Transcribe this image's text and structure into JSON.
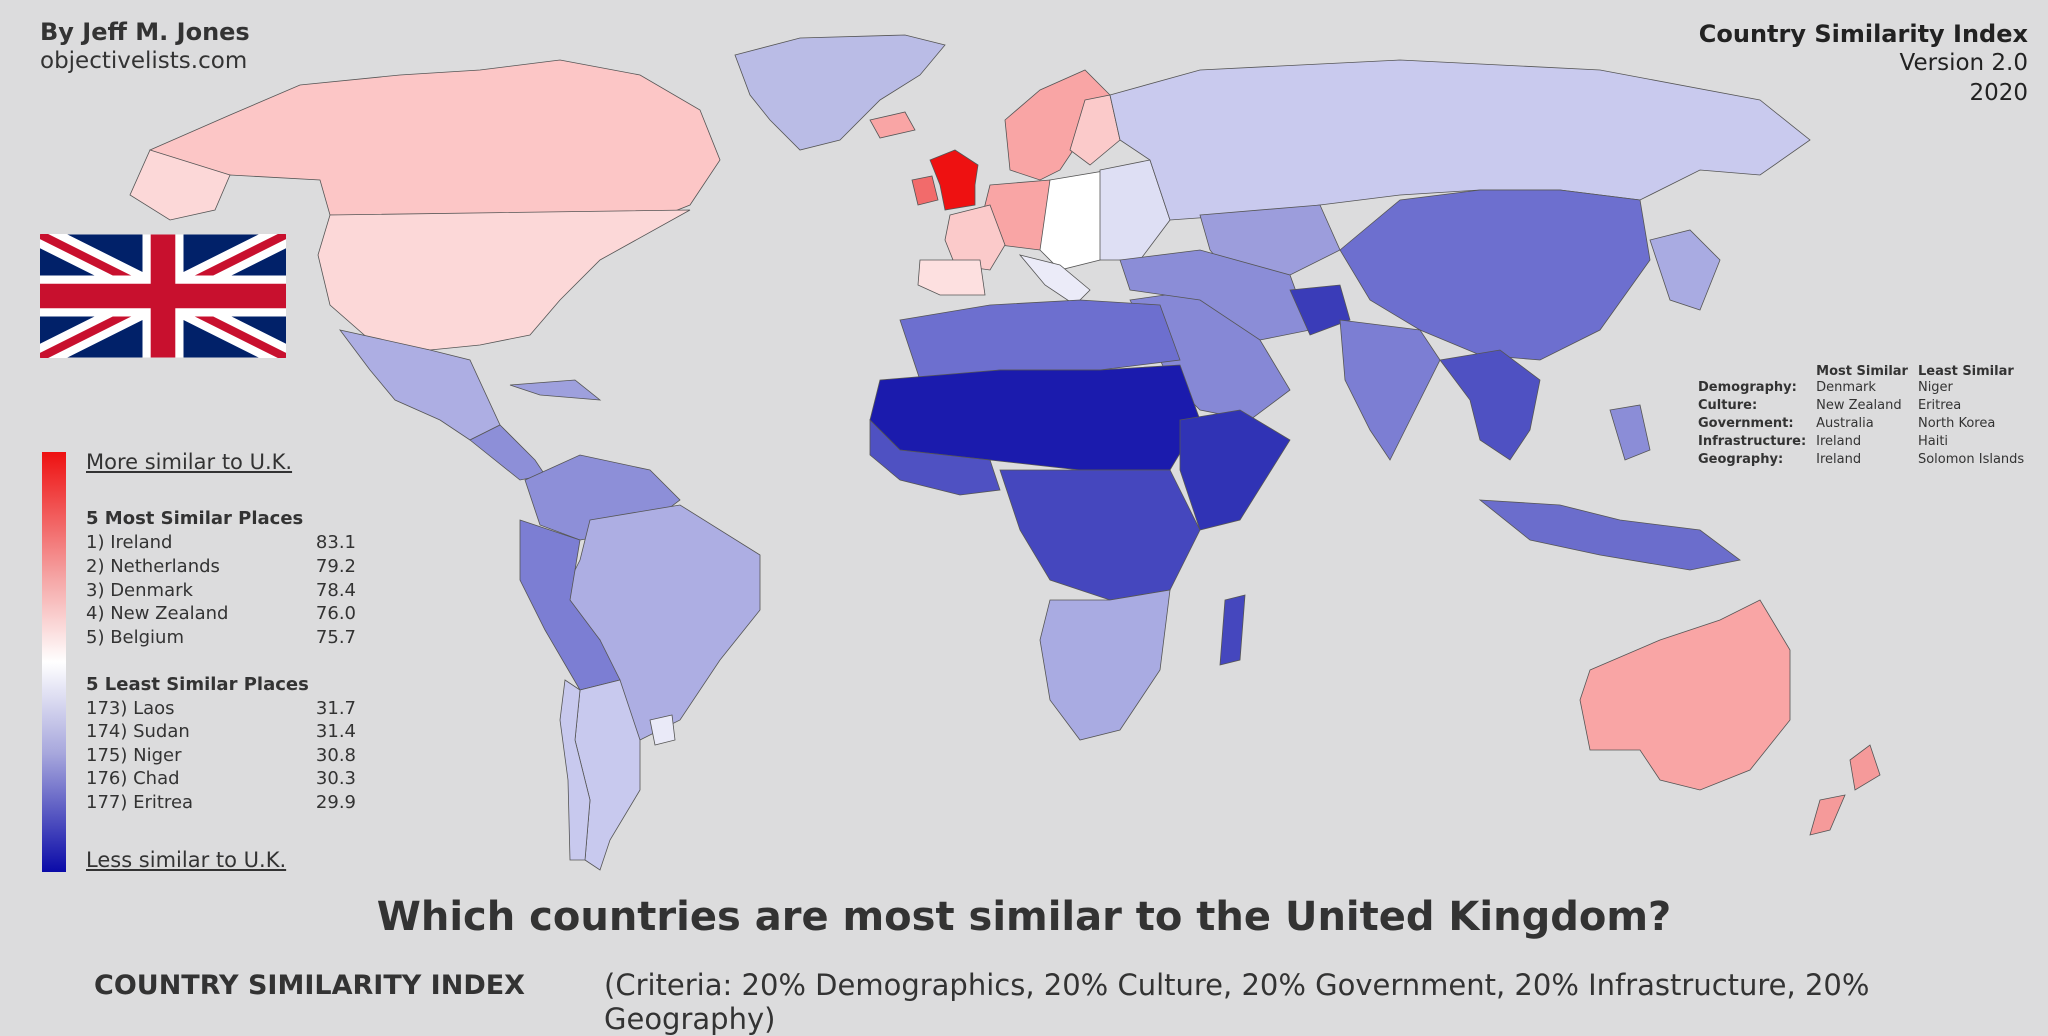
{
  "header": {
    "author": "By Jeff M. Jones",
    "site": "objectivelists.com",
    "index_title": "Country Similarity Index",
    "version": "Version 2.0",
    "year": "2020"
  },
  "colors": {
    "most_similar": "#ee1111",
    "neutral": "#ffffff",
    "least_similar": "#0a0aa8",
    "ocean": "#dcdcdd"
  },
  "legend": {
    "top_label": "More similar to U.K.",
    "bottom_label": "Less similar to U.K.",
    "most_heading": "5 Most Similar Places",
    "most": [
      {
        "rank": "1) Ireland",
        "score": "83.1"
      },
      {
        "rank": "2) Netherlands",
        "score": "79.2"
      },
      {
        "rank": "3) Denmark",
        "score": "78.4"
      },
      {
        "rank": "4) New Zealand",
        "score": "76.0"
      },
      {
        "rank": "5) Belgium",
        "score": "75.7"
      }
    ],
    "least_heading": "5 Least Similar Places",
    "least": [
      {
        "rank": "173) Laos",
        "score": "31.7"
      },
      {
        "rank": "174) Sudan",
        "score": "31.4"
      },
      {
        "rank": "175) Niger",
        "score": "30.8"
      },
      {
        "rank": "176) Chad",
        "score": "30.3"
      },
      {
        "rank": "177) Eritrea",
        "score": "29.9"
      }
    ]
  },
  "categories": {
    "col_most": "Most Similar",
    "col_least": "Least Similar",
    "rows": [
      {
        "name": "Demography:",
        "most": "Denmark",
        "least": "Niger"
      },
      {
        "name": "Culture:",
        "most": "New Zealand",
        "least": "Eritrea"
      },
      {
        "name": "Government:",
        "most": "Australia",
        "least": "North Korea"
      },
      {
        "name": "Infrastructure:",
        "most": "Ireland",
        "least": "Haiti"
      },
      {
        "name": "Geography:",
        "most": "Ireland",
        "least": "Solomon Islands"
      }
    ]
  },
  "footer": {
    "question": "Which countries are most similar to the United Kingdom?",
    "label": "COUNTRY SIMILARITY INDEX",
    "criteria": "(Criteria: 20% Demographics, 20% Culture, 20% Government, 20% Infrastructure, 20% Geography)"
  }
}
